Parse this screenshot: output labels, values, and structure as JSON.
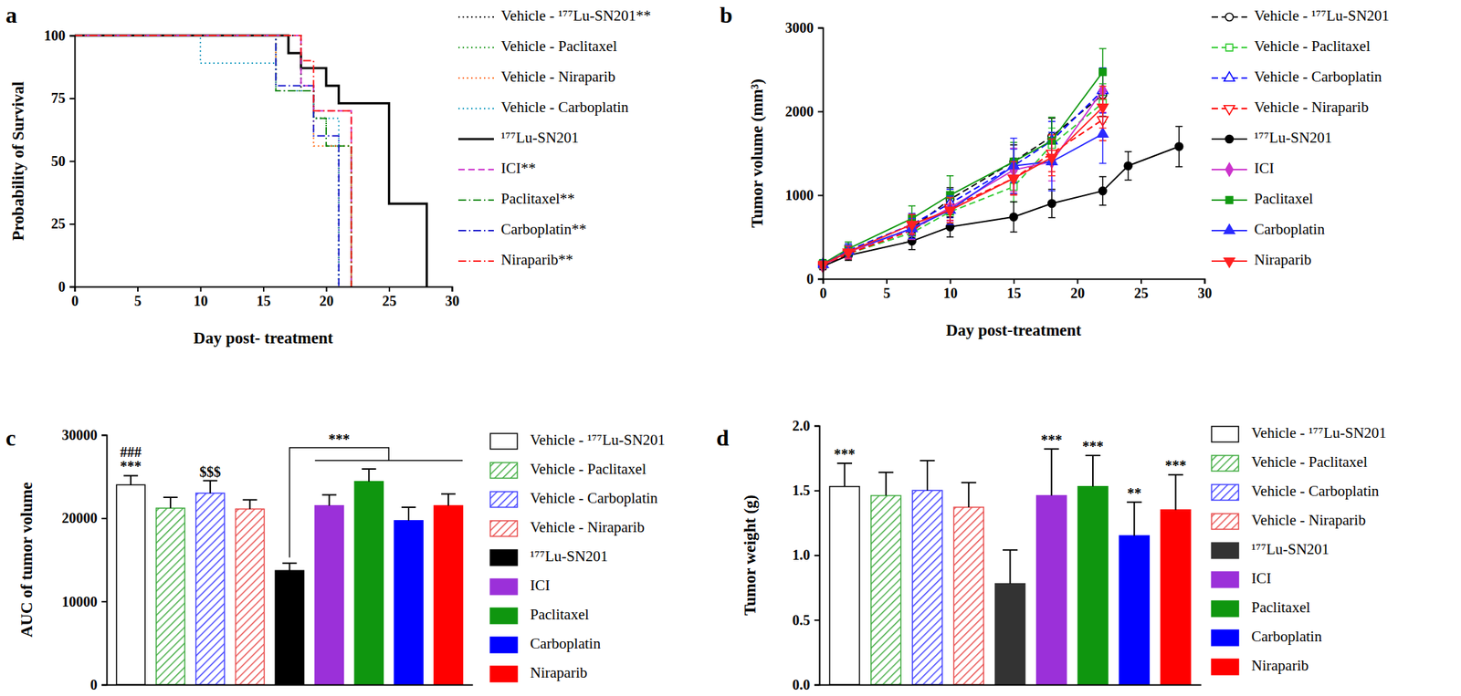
{
  "chart_data": [
    {
      "type": "step",
      "title": "a",
      "x_label": "Day post- treatment",
      "y_label": "Probability of Survival",
      "xlim": [
        0,
        30
      ],
      "xticks": [
        0,
        5,
        10,
        15,
        20,
        25,
        30
      ],
      "ylim": [
        0,
        100
      ],
      "yticks": [
        0,
        25,
        50,
        75,
        100
      ],
      "legend": "right",
      "series": [
        {
          "name": "Vehicle - ¹⁷⁷Lu-SN201**",
          "color": "#000000",
          "line_style": "dotted",
          "x": [
            0,
            18,
            19,
            20,
            21
          ],
          "values": [
            100,
            78,
            67,
            56,
            0
          ]
        },
        {
          "name": "Vehicle - Paclitaxel",
          "color": "#2ca02c",
          "line_style": "dotted",
          "x": [
            0,
            16,
            19,
            20,
            22
          ],
          "values": [
            100,
            78,
            67,
            56,
            0
          ]
        },
        {
          "name": "Vehicle - Niraparib",
          "color": "#ff6a13",
          "line_style": "dotted",
          "x": [
            0,
            16,
            19,
            22
          ],
          "values": [
            100,
            78,
            56,
            0
          ]
        },
        {
          "name": "Vehicle - Carboplatin",
          "color": "#1b9ec2",
          "line_style": "dotted",
          "x": [
            0,
            10,
            16,
            19,
            21
          ],
          "values": [
            100,
            89,
            78,
            67,
            0
          ]
        },
        {
          "name": "¹⁷⁷Lu-SN201",
          "color": "#000000",
          "line_style": "solid",
          "x": [
            0,
            17,
            18,
            20,
            21,
            25,
            28
          ],
          "values": [
            100,
            93,
            87,
            80,
            73,
            33,
            0
          ]
        },
        {
          "name": "ICI**",
          "color": "#cc33cc",
          "line_style": "dashed",
          "x": [
            0,
            18,
            19,
            22
          ],
          "values": [
            100,
            80,
            70,
            0
          ]
        },
        {
          "name": "Paclitaxel**",
          "color": "#1a8c1a",
          "line_style": "dashdot",
          "x": [
            0,
            16,
            19,
            20,
            22
          ],
          "values": [
            100,
            78,
            67,
            56,
            0
          ]
        },
        {
          "name": "Carboplatin**",
          "color": "#1a1acc",
          "line_style": "dashdot",
          "x": [
            0,
            16,
            19,
            21
          ],
          "values": [
            100,
            80,
            60,
            0
          ]
        },
        {
          "name": "Niraparib**",
          "color": "#ff1a1a",
          "line_style": "dashdot",
          "x": [
            0,
            18,
            19,
            22
          ],
          "values": [
            100,
            90,
            70,
            0
          ]
        }
      ]
    },
    {
      "type": "line",
      "title": "b",
      "x_label": "Day post-treatment",
      "y_label": "Tumor volume (mm³)",
      "xlim": [
        0,
        30
      ],
      "xticks": [
        0,
        5,
        10,
        15,
        20,
        25,
        30
      ],
      "ylim": [
        0,
        3000
      ],
      "yticks": [
        0,
        1000,
        2000,
        3000
      ],
      "legend": "right",
      "series": [
        {
          "name": "Vehicle - ¹⁷⁷Lu-SN201",
          "color": "#000000",
          "line_style": "dashed",
          "marker": "circle-open",
          "x": [
            0,
            2,
            7,
            10,
            15,
            18,
            22
          ],
          "values": [
            170,
            320,
            600,
            950,
            1400,
            1700,
            2200
          ],
          "errors": [
            40,
            70,
            110,
            140,
            200,
            220,
            260
          ]
        },
        {
          "name": "Vehicle - Paclitaxel",
          "color": "#33cc33",
          "line_style": "dashed",
          "marker": "square-open",
          "x": [
            0,
            2,
            7,
            10,
            15,
            18,
            22
          ],
          "values": [
            160,
            300,
            550,
            800,
            1100,
            1600,
            2100
          ],
          "errors": [
            40,
            60,
            100,
            130,
            180,
            200,
            230
          ]
        },
        {
          "name": "Vehicle - Carboplatin",
          "color": "#0000ff",
          "line_style": "dashed",
          "marker": "triangle-open",
          "x": [
            0,
            2,
            7,
            10,
            15,
            18,
            22
          ],
          "values": [
            170,
            340,
            650,
            900,
            1350,
            1650,
            2250
          ],
          "errors": [
            40,
            80,
            130,
            170,
            200,
            230,
            270
          ]
        },
        {
          "name": "Vehicle - Niraparib",
          "color": "#ff0000",
          "line_style": "dashed",
          "marker": "triangle-down-open",
          "x": [
            0,
            2,
            7,
            10,
            15,
            18,
            22
          ],
          "values": [
            150,
            300,
            580,
            850,
            1200,
            1500,
            1900
          ],
          "errors": [
            40,
            70,
            110,
            150,
            190,
            220,
            250
          ]
        },
        {
          "name": "¹⁷⁷Lu-SN201",
          "color": "#000000",
          "line_style": "solid",
          "marker": "circle",
          "x": [
            0,
            2,
            7,
            10,
            15,
            18,
            22,
            24,
            28
          ],
          "values": [
            150,
            280,
            450,
            620,
            740,
            900,
            1050,
            1350,
            1580
          ],
          "errors": [
            40,
            60,
            100,
            120,
            180,
            170,
            170,
            170,
            240
          ]
        },
        {
          "name": "ICI",
          "color": "#cc33cc",
          "line_style": "solid",
          "marker": "diamond",
          "x": [
            0,
            2,
            7,
            10,
            15,
            18,
            22
          ],
          "values": [
            160,
            320,
            600,
            850,
            1300,
            1400,
            2250
          ],
          "errors": [
            40,
            80,
            130,
            160,
            260,
            230,
            260
          ]
        },
        {
          "name": "Paclitaxel",
          "color": "#119911",
          "line_style": "solid",
          "marker": "square",
          "x": [
            0,
            2,
            7,
            10,
            15,
            18,
            22
          ],
          "values": [
            180,
            360,
            720,
            1000,
            1400,
            1650,
            2470
          ],
          "errors": [
            50,
            80,
            150,
            230,
            230,
            280,
            280
          ]
        },
        {
          "name": "Carboplatin",
          "color": "#2a2aff",
          "line_style": "solid",
          "marker": "triangle",
          "x": [
            0,
            2,
            7,
            10,
            15,
            18,
            22
          ],
          "values": [
            170,
            330,
            600,
            820,
            1350,
            1400,
            1730
          ],
          "errors": [
            40,
            70,
            120,
            170,
            330,
            350,
            350
          ]
        },
        {
          "name": "Niraparib",
          "color": "#ff2020",
          "line_style": "solid",
          "marker": "triangle-down",
          "x": [
            0,
            2,
            7,
            10,
            15,
            18,
            22
          ],
          "values": [
            170,
            320,
            650,
            820,
            1200,
            1450,
            2050
          ],
          "errors": [
            40,
            70,
            120,
            150,
            200,
            220,
            250
          ]
        }
      ]
    },
    {
      "type": "bar",
      "title": "c",
      "y_label": "AUC of tumor volume",
      "ylim": [
        0,
        30000
      ],
      "yticks": [
        0,
        10000,
        20000,
        30000
      ],
      "legend": "right",
      "tick_labels": "y",
      "categories": [
        "Vehicle - ¹⁷⁷Lu-SN201",
        "Vehicle - Paclitaxel",
        "Vehicle - Carboplatin",
        "Vehicle - Niraparib",
        "¹⁷⁷Lu-SN201",
        "ICI",
        "Paclitaxel",
        "Carboplatin",
        "Niraparib"
      ],
      "values": [
        24000,
        21200,
        23000,
        21100,
        13700,
        21500,
        24400,
        19700,
        21500
      ],
      "errors": [
        1100,
        1300,
        1500,
        1100,
        900,
        1300,
        1500,
        1600,
        1400
      ],
      "colors": [
        "#ffffff",
        "#3daa3d",
        "#3d3dff",
        "#e84a4a",
        "#000000",
        "#9b30d9",
        "#0f960f",
        "#0000ff",
        "#ff0000"
      ],
      "annotations": [
        [
          "###",
          "***"
        ],
        [],
        [
          "$$$"
        ],
        [],
        [],
        [],
        [],
        [],
        []
      ],
      "comparison": {
        "label": "***",
        "from": "¹⁷⁷Lu-SN201",
        "to": [
          "ICI",
          "Paclitaxel",
          "Carboplatin",
          "Niraparib"
        ]
      }
    },
    {
      "type": "bar",
      "title": "d",
      "y_label": "Tumor weight (g)",
      "ylim": [
        0,
        2
      ],
      "yticks": [
        {
          "value": 0,
          "label": "0.0"
        },
        0.5,
        {
          "value": 1,
          "label": "1.0"
        },
        1.5,
        {
          "value": 2,
          "label": "2.0"
        }
      ],
      "legend": "right",
      "tick_labels": "y",
      "categories": [
        "Vehicle - ¹⁷⁷Lu-SN201",
        "Vehicle - Paclitaxel",
        "Vehicle - Carboplatin",
        "Vehicle - Niraparib",
        "¹⁷⁷Lu-SN201",
        "ICI",
        "Paclitaxel",
        "Carboplatin",
        "Niraparib"
      ],
      "values": [
        1.53,
        1.46,
        1.5,
        1.37,
        0.78,
        1.46,
        1.53,
        1.15,
        1.35
      ],
      "errors": [
        0.18,
        0.18,
        0.23,
        0.19,
        0.26,
        0.36,
        0.24,
        0.26,
        0.27
      ],
      "colors": [
        "#ffffff",
        "#3daa3d",
        "#3d3dff",
        "#e84a4a",
        "#333333",
        "#9b30d9",
        "#0f960f",
        "#0000ff",
        "#ff0000"
      ],
      "annotations": [
        [
          "***"
        ],
        [],
        [],
        [],
        [],
        [
          "***"
        ],
        [
          "***"
        ],
        [
          "**"
        ],
        [
          "***"
        ]
      ]
    }
  ]
}
